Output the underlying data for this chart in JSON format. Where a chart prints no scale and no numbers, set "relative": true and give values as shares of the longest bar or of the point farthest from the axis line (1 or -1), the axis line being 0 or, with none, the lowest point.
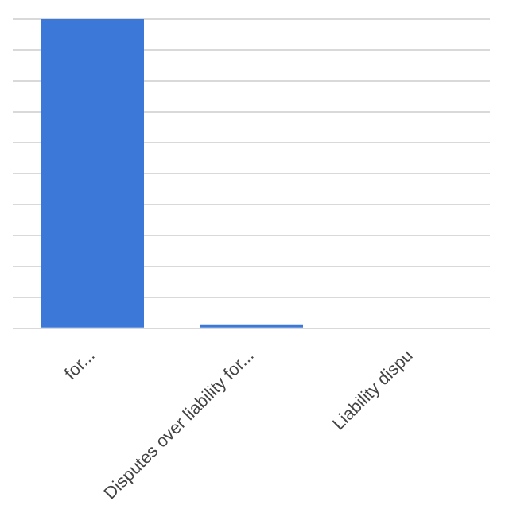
{
  "chart_data": {
    "type": "bar",
    "relative": true,
    "categories": [
      "for...",
      "Disputes over liability for...",
      "Liability dispu"
    ],
    "values": [
      1,
      0.01,
      0
    ],
    "color": "#3c78d8",
    "grid": "y",
    "legend": false
  }
}
